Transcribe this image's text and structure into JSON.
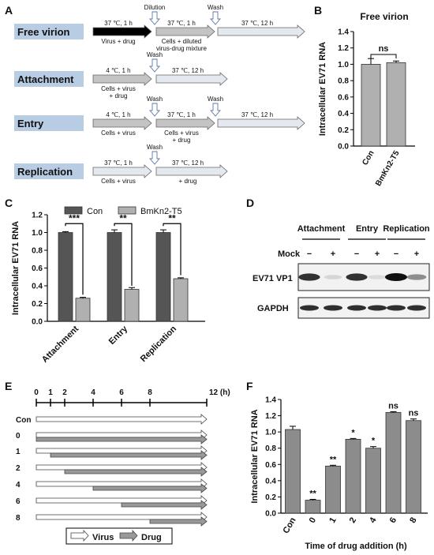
{
  "panel_letters": {
    "a": "A",
    "b": "B",
    "c": "C",
    "d": "D",
    "e": "E",
    "f": "F"
  },
  "panel_a": {
    "rows": [
      {
        "label": "Free virion",
        "steps": [
          {
            "top": "37 ℃, 1 h",
            "bottom": "Virus + drug",
            "style": "black"
          },
          {
            "top": "37 ℃, 1 h",
            "bottom": "Cells + diluted",
            "bottom2": "virus-drug mixture",
            "style": "grey"
          },
          {
            "top": "37 ℃, 12 h",
            "bottom": "",
            "bottom2": "",
            "style": "light"
          }
        ],
        "markers": [
          {
            "text": "Dilution"
          },
          {
            "text": "Wash"
          }
        ]
      },
      {
        "label": "Attachment",
        "steps": [
          {
            "top": "4 ℃, 1 h",
            "bottom": "Cells + virus",
            "bottom2": "+ drug",
            "style": "grey"
          },
          {
            "top": "37 ℃, 12 h",
            "bottom": "",
            "style": "light"
          }
        ],
        "markers": [
          {
            "text": "Wash"
          }
        ]
      },
      {
        "label": "Entry",
        "steps": [
          {
            "top": "4 ℃, 1 h",
            "bottom": "Cells + virus",
            "style": "grey"
          },
          {
            "top": "37 ℃, 1 h",
            "bottom": "Cells + virus",
            "bottom2": "+ drug",
            "style": "grey"
          },
          {
            "top": "37 ℃, 12 h",
            "bottom": "",
            "style": "light"
          }
        ],
        "markers": [
          {
            "text": "Wash"
          },
          {
            "text": "Wash"
          }
        ]
      },
      {
        "label": "Replication",
        "steps": [
          {
            "top": "37 ℃, 1 h",
            "bottom": "Cells + virus",
            "style": "light"
          },
          {
            "top": "37 ℃, 12 h",
            "bottom": "+ drug",
            "style": "light"
          }
        ],
        "markers": [
          {
            "text": "Wash"
          }
        ]
      }
    ]
  },
  "panel_d": {
    "groups": [
      "Attachment",
      "Entry",
      "Replication"
    ],
    "mock_label": "Mock",
    "lane_signs": [
      "−",
      "+",
      "−",
      "+",
      "−",
      "+"
    ],
    "blots": [
      "EV71 VP1",
      "GAPDH"
    ],
    "vp1_intensity": [
      0.85,
      0.12,
      0.85,
      0.1,
      1.0,
      0.45
    ]
  },
  "panel_e": {
    "ticks": [
      "0",
      "1",
      "2",
      "4",
      "6",
      "8",
      "12 (h)"
    ],
    "tick_hours": [
      0,
      1,
      2,
      4,
      6,
      8,
      12
    ],
    "rows": [
      {
        "label": "Con",
        "start": null
      },
      {
        "label": "0",
        "start": 0
      },
      {
        "label": "1",
        "start": 1
      },
      {
        "label": "2",
        "start": 2
      },
      {
        "label": "4",
        "start": 4
      },
      {
        "label": "6",
        "start": 6
      },
      {
        "label": "8",
        "start": 8
      }
    ],
    "legend": {
      "virus": "Virus",
      "drug": "Drug"
    }
  },
  "chart_data": [
    {
      "panel": "B",
      "type": "bar",
      "title": "Free virion",
      "ylabel": "Intracellular EV71 RNA",
      "categories": [
        "Con",
        "BmKn2-T5"
      ],
      "values": [
        1.0,
        1.02
      ],
      "errors": [
        0.07,
        0.02
      ],
      "ylim": [
        0,
        1.4
      ],
      "yticks": [
        "0.0",
        "0.2",
        "0.4",
        "0.6",
        "0.8",
        "1.0",
        "1.2",
        "1.4"
      ],
      "significance": [
        {
          "pair": [
            0,
            1
          ],
          "label": "ns"
        }
      ],
      "color": "#b0b0b0"
    },
    {
      "panel": "C",
      "type": "bar",
      "ylabel": "Intracellular EV71 RNA",
      "categories": [
        "Attachment",
        "Entry",
        "Replication"
      ],
      "series": [
        {
          "name": "Con",
          "values": [
            1.0,
            1.0,
            1.0
          ],
          "errors": [
            0.01,
            0.03,
            0.03
          ],
          "color": "#555555"
        },
        {
          "name": "BmKn2-T5",
          "values": [
            0.26,
            0.36,
            0.48
          ],
          "errors": [
            0.01,
            0.02,
            0.01
          ],
          "color": "#b0b0b0"
        }
      ],
      "ylim": [
        0,
        1.2
      ],
      "yticks": [
        "0.0",
        "0.2",
        "0.4",
        "0.6",
        "0.8",
        "1.0",
        "1.2"
      ],
      "significance": [
        "***",
        "**",
        "**"
      ],
      "legend": "top"
    },
    {
      "panel": "F",
      "type": "bar",
      "ylabel": "Intracellular EV71 RNA",
      "xlabel": "Time of drug addition (h)",
      "categories": [
        "Con",
        "0",
        "1",
        "2",
        "4",
        "6",
        "8"
      ],
      "values": [
        1.03,
        0.16,
        0.58,
        0.91,
        0.8,
        1.24,
        1.14
      ],
      "errors": [
        0.04,
        0.01,
        0.01,
        0.01,
        0.02,
        0.01,
        0.02
      ],
      "significance": [
        "",
        "**",
        "**",
        "*",
        "*",
        "ns",
        "ns"
      ],
      "ylim": [
        0,
        1.4
      ],
      "yticks": [
        "0.0",
        "0.2",
        "0.4",
        "0.6",
        "0.8",
        "1.0",
        "1.2",
        "1.4"
      ],
      "color": "#8c8c8c"
    }
  ]
}
